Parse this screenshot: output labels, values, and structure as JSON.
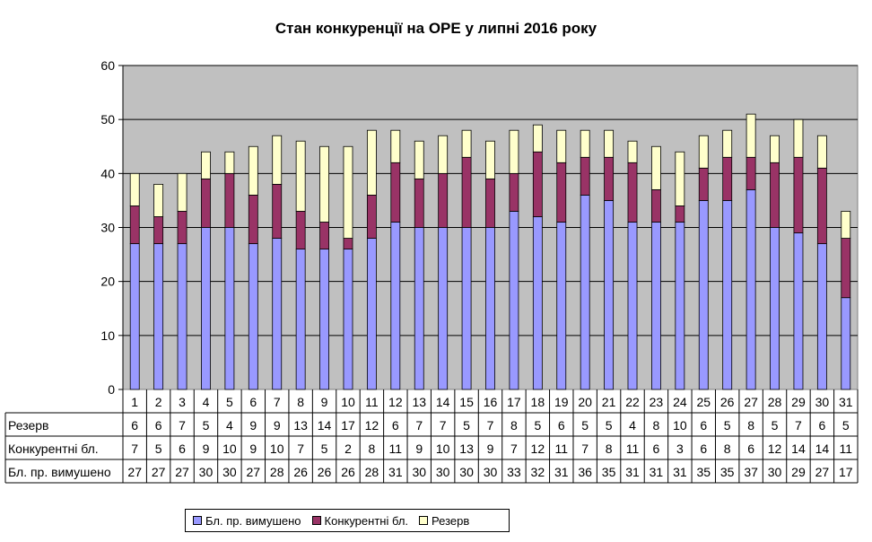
{
  "chart_data": {
    "type": "bar",
    "stacked": true,
    "title": "Стан конкуренції на ОРЕ  у липні 2016 року",
    "xlabel": "",
    "ylabel": "",
    "ylim": [
      0,
      60
    ],
    "yticks": [
      "0",
      "10",
      "20",
      "30",
      "40",
      "50",
      "60"
    ],
    "grid": true,
    "legend_position": "bottom",
    "categories": [
      "1",
      "2",
      "3",
      "4",
      "5",
      "6",
      "7",
      "8",
      "9",
      "10",
      "11",
      "12",
      "13",
      "14",
      "15",
      "16",
      "17",
      "18",
      "19",
      "20",
      "21",
      "22",
      "23",
      "24",
      "25",
      "26",
      "27",
      "28",
      "29",
      "30",
      "31"
    ],
    "series": [
      {
        "name": "Бл. пр. вимушено",
        "color": "#9999ff",
        "values": [
          27,
          27,
          27,
          30,
          30,
          27,
          28,
          26,
          26,
          26,
          28,
          31,
          30,
          30,
          30,
          30,
          33,
          32,
          31,
          36,
          35,
          31,
          31,
          31,
          35,
          35,
          37,
          30,
          29,
          27,
          17
        ]
      },
      {
        "name": "Конкурентні бл.",
        "color": "#993366",
        "values": [
          7,
          5,
          6,
          9,
          10,
          9,
          10,
          7,
          5,
          2,
          8,
          11,
          9,
          10,
          13,
          9,
          7,
          12,
          11,
          7,
          8,
          11,
          6,
          3,
          6,
          8,
          6,
          12,
          14,
          14,
          11
        ]
      },
      {
        "name": "Резерв",
        "color": "#ffffcc",
        "values": [
          6,
          6,
          7,
          5,
          4,
          9,
          9,
          13,
          14,
          17,
          12,
          6,
          7,
          7,
          5,
          7,
          8,
          5,
          6,
          5,
          5,
          4,
          8,
          10,
          6,
          5,
          8,
          5,
          7,
          6,
          5
        ]
      }
    ],
    "table_rows": [
      "Резерв",
      "Конкурентні бл.",
      "Бл. пр. вимушено"
    ]
  }
}
